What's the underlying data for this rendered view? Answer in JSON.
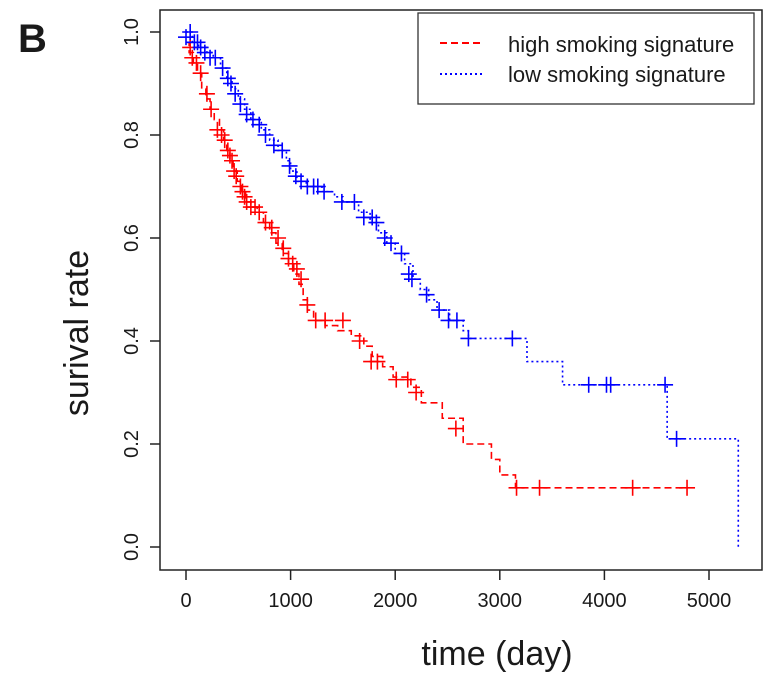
{
  "panel_label": "B",
  "chart_data": {
    "type": "line",
    "xlabel": "time (day)",
    "ylabel": "surival rate",
    "xlim": [
      0,
      5300
    ],
    "ylim": [
      0,
      1.0
    ],
    "x_ticks": [
      0,
      1000,
      2000,
      3000,
      4000,
      5000
    ],
    "y_ticks": [
      0.0,
      0.2,
      0.4,
      0.6,
      0.8,
      1.0
    ],
    "x_tick_labels": [
      "0",
      "1000",
      "2000",
      "3000",
      "4000",
      "5000"
    ],
    "y_tick_labels": [
      "0.0",
      "0.2",
      "0.4",
      "0.6",
      "0.8",
      "1.0"
    ],
    "grid": false,
    "legend_position": "top-right",
    "series": [
      {
        "name": "high smoking signature",
        "color": "#ff0000",
        "line_style": "dashed",
        "steps": [
          [
            0,
            0.98
          ],
          [
            30,
            0.96
          ],
          [
            70,
            0.94
          ],
          [
            110,
            0.92
          ],
          [
            150,
            0.89
          ],
          [
            190,
            0.87
          ],
          [
            230,
            0.85
          ],
          [
            270,
            0.83
          ],
          [
            320,
            0.81
          ],
          [
            360,
            0.79
          ],
          [
            390,
            0.77
          ],
          [
            420,
            0.75
          ],
          [
            450,
            0.73
          ],
          [
            490,
            0.71
          ],
          [
            530,
            0.69
          ],
          [
            570,
            0.67
          ],
          [
            620,
            0.66
          ],
          [
            680,
            0.65
          ],
          [
            740,
            0.63
          ],
          [
            800,
            0.61
          ],
          [
            860,
            0.59
          ],
          [
            920,
            0.57
          ],
          [
            980,
            0.55
          ],
          [
            1030,
            0.53
          ],
          [
            1080,
            0.51
          ],
          [
            1120,
            0.48
          ],
          [
            1160,
            0.46
          ],
          [
            1220,
            0.44
          ],
          [
            1330,
            0.43
          ],
          [
            1450,
            0.42
          ],
          [
            1580,
            0.41
          ],
          [
            1700,
            0.39
          ],
          [
            1780,
            0.37
          ],
          [
            1880,
            0.35
          ],
          [
            1980,
            0.33
          ],
          [
            2150,
            0.31
          ],
          [
            2250,
            0.28
          ],
          [
            2450,
            0.25
          ],
          [
            2650,
            0.2
          ],
          [
            2920,
            0.17
          ],
          [
            3000,
            0.14
          ],
          [
            3150,
            0.115
          ],
          [
            4790,
            0.115
          ]
        ],
        "censor": [
          [
            40,
            0.97
          ],
          [
            60,
            0.95
          ],
          [
            100,
            0.94
          ],
          [
            140,
            0.92
          ],
          [
            200,
            0.88
          ],
          [
            240,
            0.85
          ],
          [
            300,
            0.81
          ],
          [
            340,
            0.8
          ],
          [
            370,
            0.79
          ],
          [
            400,
            0.77
          ],
          [
            420,
            0.76
          ],
          [
            440,
            0.75
          ],
          [
            460,
            0.73
          ],
          [
            480,
            0.72
          ],
          [
            520,
            0.7
          ],
          [
            540,
            0.69
          ],
          [
            560,
            0.68
          ],
          [
            580,
            0.67
          ],
          [
            620,
            0.66
          ],
          [
            660,
            0.66
          ],
          [
            700,
            0.65
          ],
          [
            760,
            0.63
          ],
          [
            820,
            0.62
          ],
          [
            880,
            0.6
          ],
          [
            930,
            0.58
          ],
          [
            980,
            0.56
          ],
          [
            1020,
            0.55
          ],
          [
            1060,
            0.54
          ],
          [
            1100,
            0.52
          ],
          [
            1160,
            0.47
          ],
          [
            1240,
            0.44
          ],
          [
            1330,
            0.44
          ],
          [
            1500,
            0.44
          ],
          [
            1660,
            0.4
          ],
          [
            1770,
            0.36
          ],
          [
            1830,
            0.36
          ],
          [
            2010,
            0.325
          ],
          [
            2120,
            0.325
          ],
          [
            2200,
            0.3
          ],
          [
            2580,
            0.23
          ],
          [
            3160,
            0.115
          ],
          [
            3380,
            0.115
          ],
          [
            4270,
            0.115
          ],
          [
            4790,
            0.115
          ]
        ]
      },
      {
        "name": "low smoking signature",
        "color": "#0000ff",
        "line_style": "dotted",
        "steps": [
          [
            0,
            1.0
          ],
          [
            60,
            0.98
          ],
          [
            120,
            0.97
          ],
          [
            200,
            0.96
          ],
          [
            260,
            0.95
          ],
          [
            330,
            0.93
          ],
          [
            390,
            0.91
          ],
          [
            440,
            0.89
          ],
          [
            500,
            0.87
          ],
          [
            560,
            0.85
          ],
          [
            620,
            0.83
          ],
          [
            720,
            0.81
          ],
          [
            800,
            0.79
          ],
          [
            880,
            0.77
          ],
          [
            960,
            0.75
          ],
          [
            1000,
            0.73
          ],
          [
            1060,
            0.71
          ],
          [
            1150,
            0.7
          ],
          [
            1300,
            0.69
          ],
          [
            1420,
            0.68
          ],
          [
            1500,
            0.67
          ],
          [
            1650,
            0.65
          ],
          [
            1760,
            0.63
          ],
          [
            1840,
            0.61
          ],
          [
            1920,
            0.59
          ],
          [
            2000,
            0.57
          ],
          [
            2090,
            0.55
          ],
          [
            2170,
            0.52
          ],
          [
            2240,
            0.5
          ],
          [
            2320,
            0.48
          ],
          [
            2400,
            0.46
          ],
          [
            2520,
            0.44
          ],
          [
            2650,
            0.42
          ],
          [
            2700,
            0.405
          ],
          [
            3260,
            0.36
          ],
          [
            3600,
            0.315
          ],
          [
            4600,
            0.21
          ],
          [
            5280,
            0.0
          ]
        ],
        "censor": [
          [
            0,
            0.99
          ],
          [
            40,
            1.0
          ],
          [
            80,
            0.98
          ],
          [
            110,
            0.98
          ],
          [
            140,
            0.97
          ],
          [
            180,
            0.96
          ],
          [
            230,
            0.95
          ],
          [
            280,
            0.95
          ],
          [
            350,
            0.93
          ],
          [
            400,
            0.91
          ],
          [
            430,
            0.9
          ],
          [
            470,
            0.88
          ],
          [
            520,
            0.86
          ],
          [
            580,
            0.84
          ],
          [
            640,
            0.83
          ],
          [
            700,
            0.82
          ],
          [
            760,
            0.8
          ],
          [
            840,
            0.78
          ],
          [
            920,
            0.77
          ],
          [
            990,
            0.74
          ],
          [
            1050,
            0.72
          ],
          [
            1100,
            0.71
          ],
          [
            1160,
            0.7
          ],
          [
            1220,
            0.7
          ],
          [
            1260,
            0.7
          ],
          [
            1320,
            0.69
          ],
          [
            1490,
            0.67
          ],
          [
            1610,
            0.67
          ],
          [
            1700,
            0.64
          ],
          [
            1780,
            0.64
          ],
          [
            1820,
            0.63
          ],
          [
            1900,
            0.6
          ],
          [
            1960,
            0.59
          ],
          [
            2060,
            0.57
          ],
          [
            2130,
            0.53
          ],
          [
            2160,
            0.52
          ],
          [
            2300,
            0.49
          ],
          [
            2420,
            0.46
          ],
          [
            2510,
            0.44
          ],
          [
            2590,
            0.44
          ],
          [
            2700,
            0.405
          ],
          [
            3120,
            0.405
          ],
          [
            3850,
            0.315
          ],
          [
            4020,
            0.315
          ],
          [
            4060,
            0.315
          ],
          [
            4580,
            0.315
          ],
          [
            4690,
            0.21
          ]
        ]
      }
    ]
  }
}
